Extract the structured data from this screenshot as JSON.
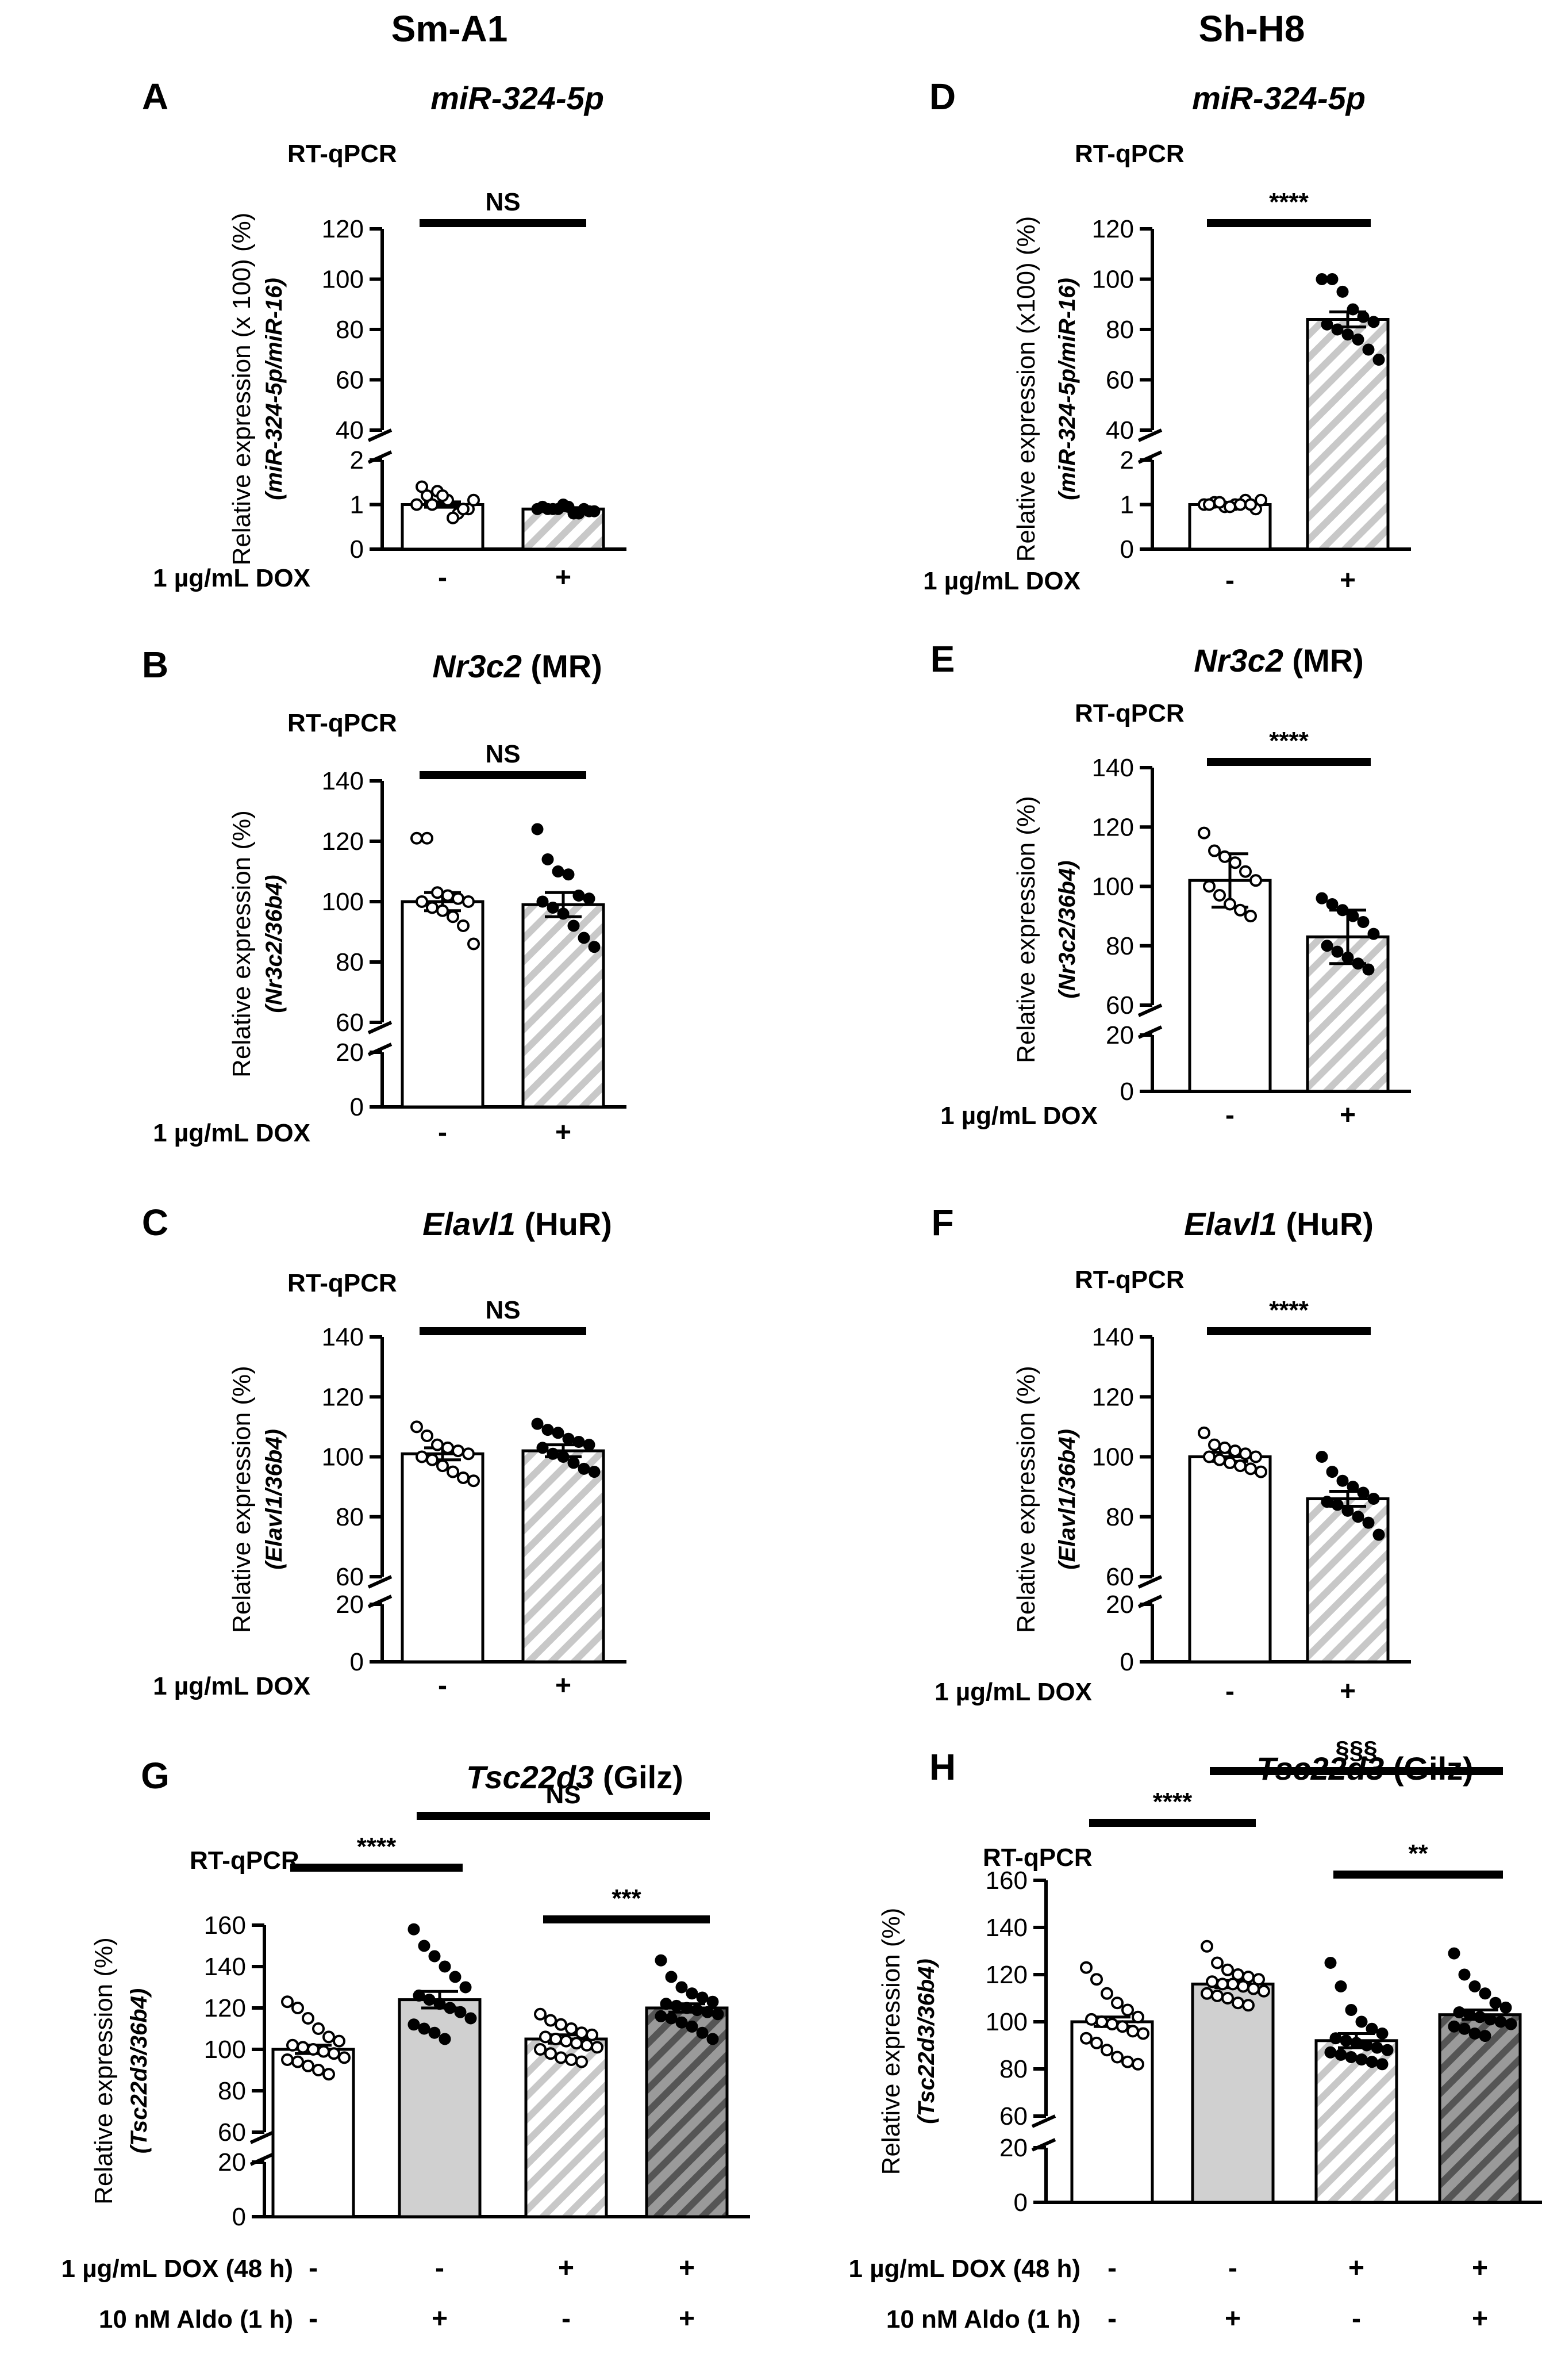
{
  "columns": [
    {
      "label": "Sm-A1"
    },
    {
      "label": "Sh-H8"
    }
  ],
  "colors": {
    "open_bar": "#ffffff",
    "grey_bar": "#d0d0d0",
    "hatch_light": "#c8c8c8",
    "hatch_dark": "#555555",
    "hatch_dark_bg": "#9a9a9a",
    "ink": "#000000"
  },
  "chart_data": [
    {
      "id": "A",
      "letter": "A",
      "type": "bar",
      "title_gene": "miR-324-5p",
      "title_suffix": "",
      "assay": "RT-qPCR",
      "ylabel": "Relative expression (x 100) (%)",
      "ylabel_ratio": "(miR-324-5p/miR-16)",
      "axis": {
        "low_ticks": [
          0,
          1,
          2
        ],
        "high_ticks": [
          40,
          60,
          80,
          100,
          120
        ],
        "low_range": [
          0,
          2
        ],
        "high_range": [
          40,
          120
        ]
      },
      "categories": [
        "-DOX",
        "+DOX"
      ],
      "values": [
        1.0,
        0.9
      ],
      "errors": [
        0.06,
        0.03
      ],
      "points": [
        [
          1.0,
          1.2,
          1.3,
          1.1,
          0.8,
          0.9,
          1.4,
          1.0,
          1.2,
          0.7,
          0.9,
          1.1
        ],
        [
          0.9,
          0.9,
          0.9,
          0.95,
          0.8,
          0.85,
          0.95,
          0.9,
          1.0,
          0.8,
          0.9,
          0.85
        ]
      ],
      "fills": [
        "open",
        "hatch_light"
      ],
      "point_styles": [
        "open",
        "filled"
      ],
      "factors": [
        {
          "label": "1 µg/mL DOX",
          "signs": [
            "-",
            "+"
          ]
        }
      ],
      "comparisons": [
        {
          "pair": [
            0,
            1
          ],
          "level": 0,
          "label": "NS"
        }
      ]
    },
    {
      "id": "B",
      "letter": "B",
      "type": "bar",
      "title_gene": "Nr3c2",
      "title_suffix": "(MR)",
      "assay": "RT-qPCR",
      "ylabel": "Relative expression (%)",
      "ylabel_ratio": "(Nr3c2/36b4)",
      "axis": {
        "low_ticks": [
          0,
          20
        ],
        "high_ticks": [
          60,
          80,
          100,
          120,
          140
        ],
        "low_range": [
          0,
          20
        ],
        "high_range": [
          60,
          140
        ]
      },
      "categories": [
        "-DOX",
        "+DOX"
      ],
      "values": [
        100,
        99
      ],
      "errors": [
        3,
        4
      ],
      "points": [
        [
          121,
          121,
          103,
          102,
          101,
          100,
          100,
          98,
          97,
          95,
          92,
          86
        ],
        [
          124,
          114,
          110,
          109,
          102,
          101,
          100,
          98,
          96,
          92,
          88,
          85
        ]
      ],
      "fills": [
        "open",
        "hatch_light"
      ],
      "point_styles": [
        "open",
        "filled"
      ],
      "factors": [
        {
          "label": "1 µg/mL DOX",
          "signs": [
            "-",
            "+"
          ]
        }
      ],
      "comparisons": [
        {
          "pair": [
            0,
            1
          ],
          "level": 0,
          "label": "NS"
        }
      ]
    },
    {
      "id": "C",
      "letter": "C",
      "type": "bar",
      "title_gene": "Elavl1",
      "title_suffix": "(HuR)",
      "assay": "RT-qPCR",
      "ylabel": "Relative expression (%)",
      "ylabel_ratio": "(Elavl1/36b4)",
      "axis": {
        "low_ticks": [
          0,
          20
        ],
        "high_ticks": [
          60,
          80,
          100,
          120,
          140
        ],
        "low_range": [
          0,
          20
        ],
        "high_range": [
          60,
          140
        ]
      },
      "categories": [
        "-DOX",
        "+DOX"
      ],
      "values": [
        101,
        102
      ],
      "errors": [
        2,
        2
      ],
      "points": [
        [
          110,
          107,
          104,
          103,
          102,
          101,
          100,
          99,
          97,
          95,
          93,
          92
        ],
        [
          111,
          109,
          108,
          106,
          105,
          104,
          103,
          101,
          100,
          98,
          96,
          95
        ]
      ],
      "fills": [
        "open",
        "hatch_light"
      ],
      "point_styles": [
        "open",
        "filled"
      ],
      "factors": [
        {
          "label": "1 µg/mL DOX",
          "signs": [
            "-",
            "+"
          ]
        }
      ],
      "comparisons": [
        {
          "pair": [
            0,
            1
          ],
          "level": 0,
          "label": "NS"
        }
      ]
    },
    {
      "id": "D",
      "letter": "D",
      "type": "bar",
      "title_gene": "miR-324-5p",
      "title_suffix": "",
      "assay": "RT-qPCR",
      "ylabel": "Relative expression (x100) (%)",
      "ylabel_ratio": "(miR-324-5p/miR-16)",
      "axis": {
        "low_ticks": [
          0,
          1,
          2
        ],
        "high_ticks": [
          40,
          60,
          80,
          100,
          120
        ],
        "low_range": [
          0,
          2
        ],
        "high_range": [
          40,
          120
        ]
      },
      "categories": [
        "-DOX",
        "+DOX"
      ],
      "values": [
        1.0,
        84
      ],
      "errors": [
        0.02,
        3
      ],
      "points": [
        [
          1.0,
          1.05,
          0.95,
          1.0,
          1.1,
          0.9,
          1.0,
          1.05,
          0.95,
          1.0,
          1.0,
          1.1
        ],
        [
          100,
          100,
          95,
          88,
          85,
          83,
          82,
          80,
          78,
          76,
          72,
          68
        ]
      ],
      "fills": [
        "open",
        "hatch_light"
      ],
      "point_styles": [
        "open",
        "filled"
      ],
      "factors": [
        {
          "label": "1 µg/mL DOX",
          "signs": [
            "-",
            "+"
          ]
        }
      ],
      "comparisons": [
        {
          "pair": [
            0,
            1
          ],
          "level": 0,
          "label": "****"
        }
      ]
    },
    {
      "id": "E",
      "letter": "E",
      "type": "bar",
      "title_gene": "Nr3c2",
      "title_suffix": "(MR)",
      "assay": "RT-qPCR",
      "ylabel": "Relative expression (%)",
      "ylabel_ratio": "(Nr3c2/36b4)",
      "axis": {
        "low_ticks": [
          0,
          20
        ],
        "high_ticks": [
          60,
          80,
          100,
          120,
          140
        ],
        "low_range": [
          0,
          20
        ],
        "high_range": [
          60,
          140
        ]
      },
      "categories": [
        "-DOX",
        "+DOX"
      ],
      "values": [
        102,
        83
      ],
      "errors": [
        9,
        9
      ],
      "points": [
        [
          118,
          112,
          110,
          108,
          105,
          102,
          100,
          97,
          94,
          92,
          90
        ],
        [
          96,
          94,
          92,
          90,
          88,
          84,
          80,
          78,
          76,
          74,
          72
        ]
      ],
      "fills": [
        "open",
        "hatch_light"
      ],
      "point_styles": [
        "open",
        "filled"
      ],
      "factors": [
        {
          "label": "1 µg/mL DOX",
          "signs": [
            "-",
            "+"
          ]
        }
      ],
      "comparisons": [
        {
          "pair": [
            0,
            1
          ],
          "level": 0,
          "label": "****"
        }
      ]
    },
    {
      "id": "F",
      "letter": "F",
      "type": "bar",
      "title_gene": "Elavl1",
      "title_suffix": "(HuR)",
      "assay": "RT-qPCR",
      "ylabel": "Relative expression (%)",
      "ylabel_ratio": "(Elavl1/36b4)",
      "axis": {
        "low_ticks": [
          0,
          20
        ],
        "high_ticks": [
          60,
          80,
          100,
          120,
          140
        ],
        "low_range": [
          0,
          20
        ],
        "high_range": [
          60,
          140
        ]
      },
      "categories": [
        "-DOX",
        "+DOX"
      ],
      "values": [
        100,
        86
      ],
      "errors": [
        1.5,
        2.5
      ],
      "points": [
        [
          108,
          104,
          103,
          102,
          101,
          100,
          100,
          99,
          98,
          97,
          96,
          95
        ],
        [
          100,
          95,
          92,
          90,
          88,
          86,
          85,
          84,
          82,
          80,
          78,
          74
        ]
      ],
      "fills": [
        "open",
        "hatch_light"
      ],
      "point_styles": [
        "open",
        "filled"
      ],
      "factors": [
        {
          "label": "1 µg/mL DOX",
          "signs": [
            "-",
            "+"
          ]
        }
      ],
      "comparisons": [
        {
          "pair": [
            0,
            1
          ],
          "level": 0,
          "label": "****"
        }
      ]
    },
    {
      "id": "G",
      "letter": "G",
      "type": "bar",
      "title_gene": "Tsc22d3",
      "title_suffix": "(Gilz)",
      "assay": "RT-qPCR",
      "ylabel": "Relative expression (%)",
      "ylabel_ratio": "(Tsc22d3/36b4)",
      "axis": {
        "low_ticks": [
          0,
          20
        ],
        "high_ticks": [
          60,
          80,
          100,
          120,
          140,
          160
        ],
        "low_range": [
          0,
          20
        ],
        "high_range": [
          60,
          160
        ]
      },
      "categories": [
        "-DOX -Aldo",
        "-DOX +Aldo",
        "+DOX -Aldo",
        "+DOX +Aldo"
      ],
      "values": [
        100,
        124,
        105,
        120
      ],
      "errors": [
        2,
        4,
        2,
        2
      ],
      "points": [
        [
          123,
          120,
          115,
          110,
          106,
          104,
          102,
          101,
          100,
          99,
          98,
          96,
          95,
          94,
          92,
          90,
          88
        ],
        [
          158,
          150,
          145,
          140,
          135,
          130,
          126,
          124,
          122,
          120,
          118,
          115,
          112,
          110,
          108,
          105
        ],
        [
          117,
          114,
          112,
          110,
          108,
          107,
          106,
          105,
          104,
          103,
          102,
          101,
          100,
          98,
          96,
          95,
          94
        ],
        [
          143,
          135,
          130,
          127,
          125,
          123,
          122,
          121,
          120,
          119,
          118,
          117,
          116,
          115,
          113,
          111,
          108,
          105
        ]
      ],
      "fills": [
        "open",
        "grey",
        "hatch_light",
        "hatch_dark"
      ],
      "point_styles": [
        "open",
        "filled",
        "open",
        "filled"
      ],
      "factors": [
        {
          "label": "1 µg/mL DOX (48 h)",
          "signs": [
            "-",
            "-",
            "+",
            "+"
          ]
        },
        {
          "label": "10 nM Aldo (1 h)",
          "signs": [
            "-",
            "+",
            "-",
            "+"
          ]
        }
      ],
      "comparisons": [
        {
          "pair": [
            0,
            1
          ],
          "level": 1,
          "label": "****"
        },
        {
          "pair": [
            1,
            3
          ],
          "level": 2,
          "label": "NS"
        },
        {
          "pair": [
            2,
            3
          ],
          "level": 0,
          "label": "***"
        }
      ]
    },
    {
      "id": "H",
      "letter": "H",
      "type": "bar",
      "title_gene": "Tsc22d3",
      "title_suffix": "(Gilz)",
      "assay": "RT-qPCR",
      "ylabel": "Relative expression (%)",
      "ylabel_ratio": "(Tsc22d3/36b4)",
      "axis": {
        "low_ticks": [
          0,
          20
        ],
        "high_ticks": [
          60,
          80,
          100,
          120,
          140,
          160
        ],
        "low_range": [
          0,
          20
        ],
        "high_range": [
          60,
          160
        ]
      },
      "categories": [
        "-DOX -Aldo",
        "-DOX +Aldo",
        "+DOX -Aldo",
        "+DOX +Aldo"
      ],
      "values": [
        100,
        116,
        92,
        103
      ],
      "errors": [
        2,
        1.5,
        3,
        2
      ],
      "points": [
        [
          123,
          118,
          112,
          108,
          105,
          102,
          101,
          100,
          99,
          98,
          96,
          95,
          93,
          91,
          88,
          85,
          83,
          82
        ],
        [
          132,
          125,
          122,
          120,
          119,
          118,
          117,
          116,
          116,
          115,
          114,
          113,
          112,
          111,
          110,
          108,
          107
        ],
        [
          125,
          115,
          105,
          100,
          97,
          95,
          93,
          92,
          91,
          90,
          89,
          88,
          87,
          86,
          85,
          84,
          83,
          82
        ],
        [
          129,
          120,
          115,
          112,
          108,
          106,
          104,
          103,
          102,
          101,
          100,
          99,
          98,
          97,
          95,
          94
        ]
      ],
      "fills": [
        "open",
        "grey",
        "hatch_light",
        "hatch_dark"
      ],
      "point_styles": [
        "open",
        "open",
        "filled",
        "filled"
      ],
      "factors": [
        {
          "label": "1 µg/mL DOX (48 h)",
          "signs": [
            "-",
            "-",
            "+",
            "+"
          ]
        },
        {
          "label": "10 nM Aldo (1 h)",
          "signs": [
            "-",
            "+",
            "-",
            "+"
          ]
        }
      ],
      "comparisons": [
        {
          "pair": [
            0,
            1
          ],
          "level": 1,
          "label": "****"
        },
        {
          "pair": [
            1,
            3
          ],
          "level": 2,
          "label": "§§§"
        },
        {
          "pair": [
            2,
            3
          ],
          "level": 0,
          "label": "**"
        }
      ]
    }
  ]
}
